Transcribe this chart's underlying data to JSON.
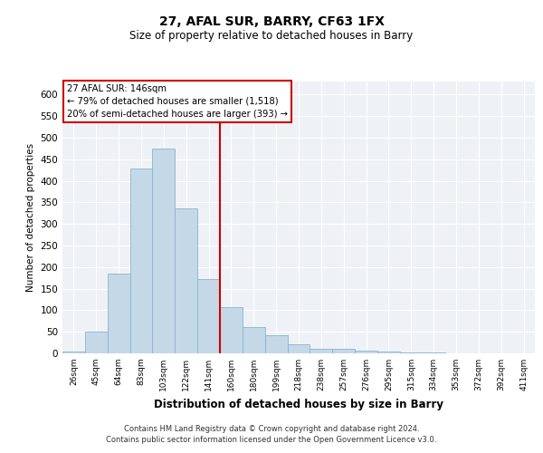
{
  "title": "27, AFAL SUR, BARRY, CF63 1FX",
  "subtitle": "Size of property relative to detached houses in Barry",
  "xlabel": "Distribution of detached houses by size in Barry",
  "ylabel": "Number of detached properties",
  "categories": [
    "26sqm",
    "45sqm",
    "64sqm",
    "83sqm",
    "103sqm",
    "122sqm",
    "141sqm",
    "160sqm",
    "180sqm",
    "199sqm",
    "218sqm",
    "238sqm",
    "257sqm",
    "276sqm",
    "295sqm",
    "315sqm",
    "334sqm",
    "353sqm",
    "372sqm",
    "392sqm",
    "411sqm"
  ],
  "values": [
    5,
    50,
    185,
    428,
    475,
    335,
    172,
    107,
    60,
    43,
    22,
    10,
    10,
    7,
    5,
    3,
    2,
    1,
    1,
    1,
    1
  ],
  "bar_color": "#c5d8e8",
  "bar_edgecolor": "#8ab4cc",
  "bar_linewidth": 0.6,
  "vline_x": 6.5,
  "vline_color": "#cc0000",
  "vline_linewidth": 1.5,
  "annotation_text": "27 AFAL SUR: 146sqm\n← 79% of detached houses are smaller (1,518)\n20% of semi-detached houses are larger (393) →",
  "ylim": [
    0,
    630
  ],
  "yticks": [
    0,
    50,
    100,
    150,
    200,
    250,
    300,
    350,
    400,
    450,
    500,
    550,
    600
  ],
  "background_color": "#eef2f7",
  "grid_color": "#ffffff",
  "footer_line1": "Contains HM Land Registry data © Crown copyright and database right 2024.",
  "footer_line2": "Contains public sector information licensed under the Open Government Licence v3.0."
}
